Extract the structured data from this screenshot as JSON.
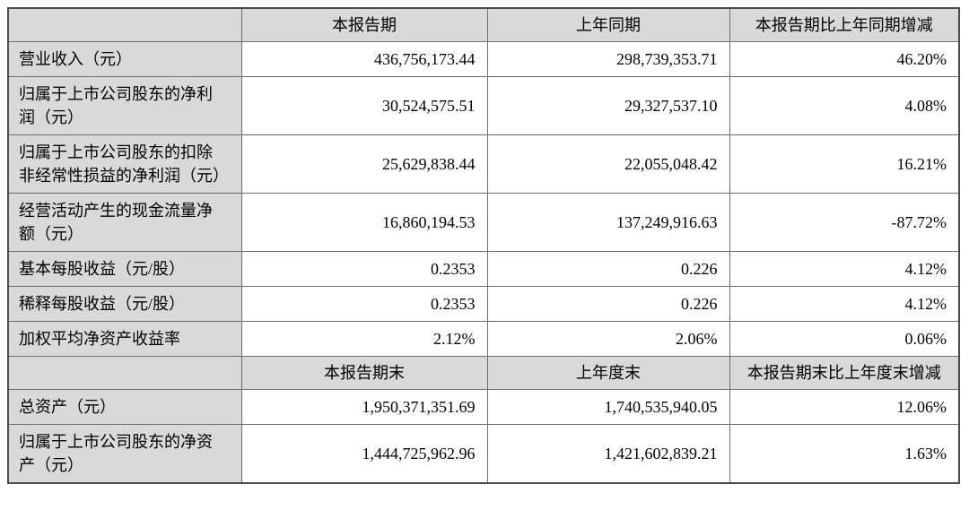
{
  "colors": {
    "header_bg": "#d9d9d9",
    "label_bg": "#d9d9d9",
    "data_bg": "#ffffff",
    "border": "#6e6e6e",
    "text": "#000000"
  },
  "table": {
    "header1": {
      "label": "",
      "current": "本报告期",
      "prior": "上年同期",
      "change": "本报告期比上年同期增减"
    },
    "rows1": [
      {
        "label": "营业收入（元）",
        "current": "436,756,173.44",
        "prior": "298,739,353.71",
        "change": "46.20%"
      },
      {
        "label": "归属于上市公司股东的净利润（元）",
        "current": "30,524,575.51",
        "prior": "29,327,537.10",
        "change": "4.08%"
      },
      {
        "label": "归属于上市公司股东的扣除非经常性损益的净利润（元）",
        "current": "25,629,838.44",
        "prior": "22,055,048.42",
        "change": "16.21%"
      },
      {
        "label": "经营活动产生的现金流量净额（元）",
        "current": "16,860,194.53",
        "prior": "137,249,916.63",
        "change": "-87.72%"
      },
      {
        "label": "基本每股收益（元/股）",
        "current": "0.2353",
        "prior": "0.226",
        "change": "4.12%"
      },
      {
        "label": "稀释每股收益（元/股）",
        "current": "0.2353",
        "prior": "0.226",
        "change": "4.12%"
      },
      {
        "label": "加权平均净资产收益率",
        "current": "2.12%",
        "prior": "2.06%",
        "change": "0.06%"
      }
    ],
    "header2": {
      "label": "",
      "current": "本报告期末",
      "prior": "上年度末",
      "change": "本报告期末比上年度末增减"
    },
    "rows2": [
      {
        "label": "总资产（元）",
        "current": "1,950,371,351.69",
        "prior": "1,740,535,940.05",
        "change": "12.06%"
      },
      {
        "label": "归属于上市公司股东的净资产（元）",
        "current": "1,444,725,962.96",
        "prior": "1,421,602,839.21",
        "change": "1.63%"
      }
    ]
  }
}
